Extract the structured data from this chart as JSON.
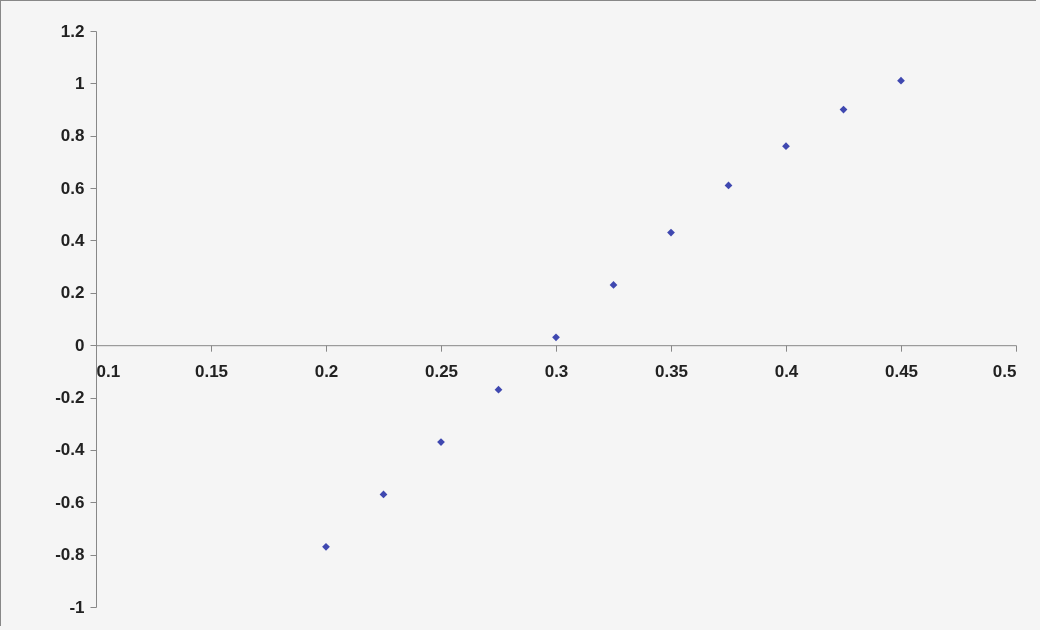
{
  "chart_data": {
    "type": "scatter",
    "x": [
      0.2,
      0.225,
      0.25,
      0.275,
      0.3,
      0.325,
      0.35,
      0.375,
      0.4,
      0.425,
      0.45
    ],
    "series": [
      {
        "color": "#3f48b0",
        "values": [
          -0.77,
          -0.57,
          -0.37,
          -0.17,
          0.03,
          0.23,
          0.43,
          0.61,
          0.76,
          0.9,
          1.01
        ]
      }
    ],
    "xlim": [
      0.1,
      0.5
    ],
    "xticks": [
      0.1,
      0.15,
      0.2,
      0.25,
      0.3,
      0.35,
      0.4,
      0.45,
      0.5
    ],
    "ylim": [
      -1,
      1.2
    ],
    "yticks": [
      -1,
      -0.8,
      -0.6,
      -0.4,
      -0.2,
      0,
      0.2,
      0.4,
      0.6,
      0.8,
      1,
      1.2
    ],
    "marker": "diamond",
    "grid": false,
    "legend": false
  }
}
